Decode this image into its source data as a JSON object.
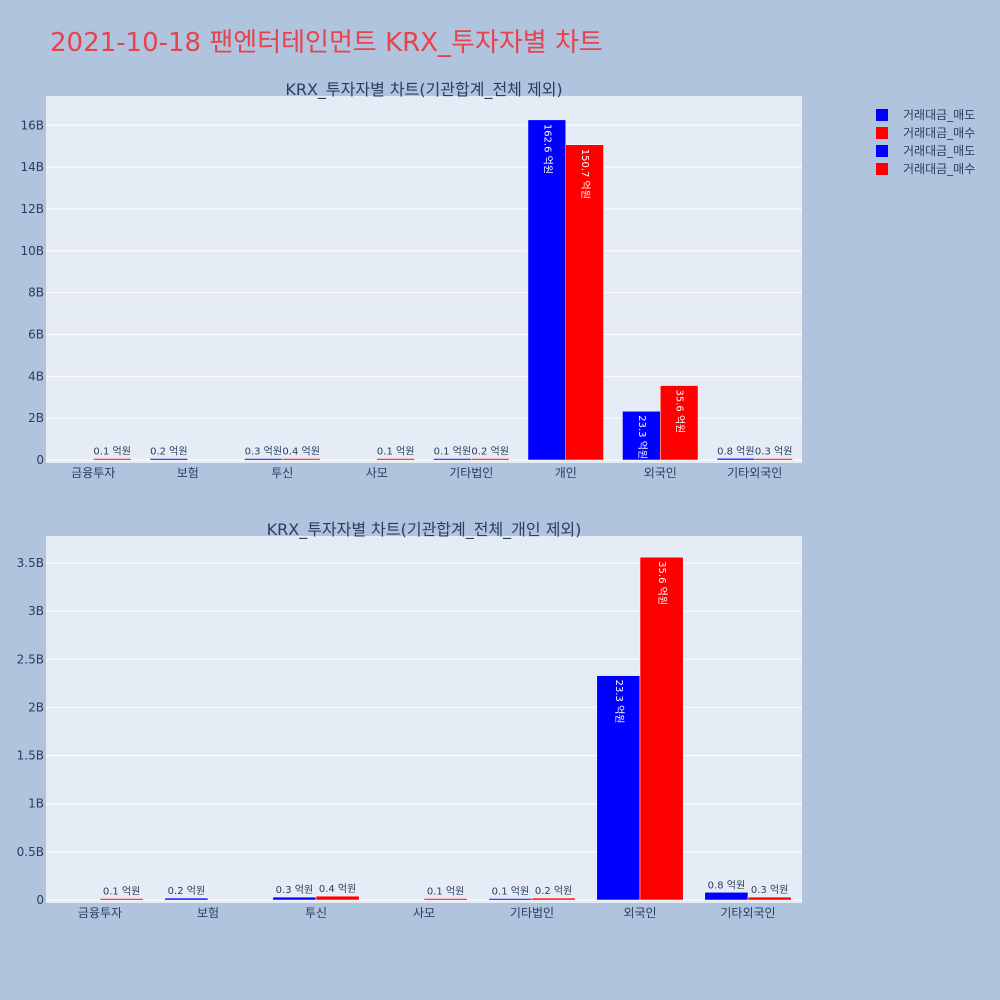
{
  "page_title": "2021-10-18 팬엔터테인먼트 KRX_투자자별 차트",
  "colors": {
    "sell": "#0000ff",
    "buy": "#ff0000",
    "plot_bg": "#e5ecf6",
    "page_bg": "#b0c4de",
    "title": "#e8424f"
  },
  "legend": [
    {
      "label": "거래대금_매도",
      "color": "#0000ff"
    },
    {
      "label": "거래대금_매수",
      "color": "#ff0000"
    },
    {
      "label": "거래대금_매도",
      "color": "#0000ff"
    },
    {
      "label": "거래대금_매수",
      "color": "#ff0000"
    }
  ],
  "chart_data": [
    {
      "type": "bar",
      "title": "KRX_투자자별 차트(기관합계_전체 제외)",
      "categories": [
        "금융투자",
        "보험",
        "투신",
        "사모",
        "기타법인",
        "개인",
        "외국인",
        "기타외국인"
      ],
      "series": [
        {
          "name": "거래대금_매도",
          "color": "#0000ff",
          "values": [
            0,
            20000000,
            30000000,
            0,
            10000000,
            16260000000,
            2330000000,
            80000000
          ],
          "labels": [
            "",
            "0.2 억원",
            "0.3 억원",
            "",
            "0.1 억원",
            "162.6 억원",
            "23.3 억원",
            "0.8 억원"
          ]
        },
        {
          "name": "거래대금_매수",
          "color": "#ff0000",
          "values": [
            10000000,
            0,
            40000000,
            10000000,
            20000000,
            15070000000,
            3560000000,
            30000000
          ],
          "labels": [
            "0.1 억원",
            "",
            "0.4 억원",
            "0.1 억원",
            "0.2 억원",
            "150.7 억원",
            "35.6 억원",
            "0.3 억원"
          ]
        }
      ],
      "yticks": [
        0,
        2000000000,
        4000000000,
        6000000000,
        8000000000,
        10000000000,
        12000000000,
        14000000000,
        16000000000
      ],
      "ytick_labels": [
        "0",
        "2B",
        "4B",
        "6B",
        "8B",
        "10B",
        "12B",
        "14B",
        "16B"
      ],
      "ylim": [
        0,
        17400000000
      ]
    },
    {
      "type": "bar",
      "title": "KRX_투자자별 차트(기관합계_전체_개인 제외)",
      "categories": [
        "금융투자",
        "보험",
        "투신",
        "사모",
        "기타법인",
        "외국인",
        "기타외국인"
      ],
      "series": [
        {
          "name": "거래대금_매도",
          "color": "#0000ff",
          "values": [
            0,
            20000000,
            30000000,
            0,
            10000000,
            2330000000,
            80000000
          ],
          "labels": [
            "",
            "0.2 억원",
            "0.3 억원",
            "",
            "0.1 억원",
            "23.3 억원",
            "0.8 억원"
          ]
        },
        {
          "name": "거래대금_매수",
          "color": "#ff0000",
          "values": [
            10000000,
            0,
            40000000,
            10000000,
            20000000,
            3560000000,
            30000000
          ],
          "labels": [
            "0.1 억원",
            "",
            "0.4 억원",
            "0.1 억원",
            "0.2 억원",
            "35.6 억원",
            "0.3 억원"
          ]
        }
      ],
      "yticks": [
        0,
        500000000,
        1000000000,
        1500000000,
        2000000000,
        2500000000,
        3000000000,
        3500000000
      ],
      "ytick_labels": [
        "0",
        "0.5B",
        "1B",
        "1.5B",
        "2B",
        "2.5B",
        "3B",
        "3.5B"
      ],
      "ylim": [
        0,
        3780000000
      ]
    }
  ]
}
